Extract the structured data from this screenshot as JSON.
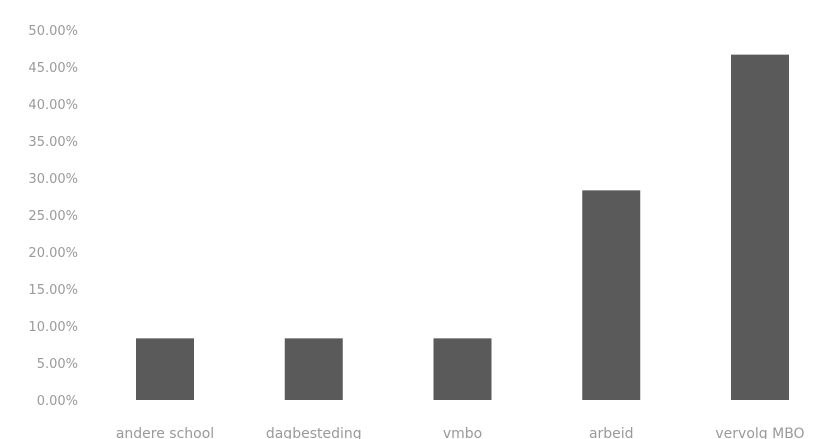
{
  "chart_data": {
    "type": "bar",
    "title": "",
    "xlabel": "",
    "ylabel": "",
    "categories": [
      "andere school",
      "dagbesteding",
      "vmbo",
      "arbeid",
      "vervolg MBO"
    ],
    "values": [
      8.33,
      8.33,
      8.33,
      28.33,
      46.67
    ],
    "ylim": [
      0,
      50
    ],
    "y_ticks": [
      "0.00%",
      "5.00%",
      "10.00%",
      "15.00%",
      "20.00%",
      "25.00%",
      "30.00%",
      "35.00%",
      "40.00%",
      "45.00%",
      "50.00%"
    ],
    "grid": false,
    "legend": "none",
    "bar_color": "#5a5a5a"
  }
}
